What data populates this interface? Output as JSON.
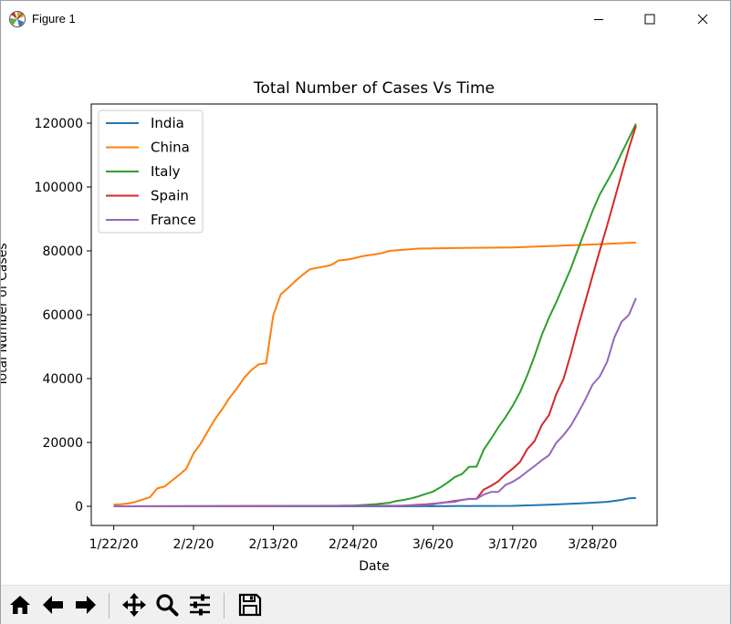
{
  "window": {
    "title": "Figure 1",
    "icons": [
      "matplotlib-logo-icon",
      "minimize-icon",
      "maximize-icon",
      "close-icon"
    ]
  },
  "toolbar": {
    "buttons": [
      "home-icon",
      "back-arrow-icon",
      "forward-arrow-icon",
      "pan-move-icon",
      "zoom-magnifier-icon",
      "configure-subplots-icon",
      "save-floppy-icon"
    ]
  },
  "chart_data": {
    "type": "line",
    "title": "Total Number of Cases Vs Time",
    "xlabel": "Date",
    "ylabel": "Total Number of Cases",
    "x_ticks": [
      {
        "day": 0,
        "label": "1/22/20"
      },
      {
        "day": 11,
        "label": "2/2/20"
      },
      {
        "day": 22,
        "label": "2/13/20"
      },
      {
        "day": 33,
        "label": "2/24/20"
      },
      {
        "day": 44,
        "label": "3/6/20"
      },
      {
        "day": 55,
        "label": "3/17/20"
      },
      {
        "day": 66,
        "label": "3/28/20"
      }
    ],
    "y_ticks": [
      0,
      20000,
      40000,
      60000,
      80000,
      100000,
      120000
    ],
    "ylim": [
      -6000,
      126000
    ],
    "grid": false,
    "legend_position": "upper-left",
    "series": [
      {
        "name": "India",
        "color": "#1f77b4",
        "points": [
          [
            0,
            0
          ],
          [
            40,
            6
          ],
          [
            44,
            30
          ],
          [
            50,
            100
          ],
          [
            55,
            140
          ],
          [
            60,
            500
          ],
          [
            65,
            1000
          ],
          [
            68,
            1400
          ],
          [
            70,
            2000
          ],
          [
            71,
            2500
          ],
          [
            72,
            2600
          ]
        ]
      },
      {
        "name": "China",
        "color": "#ff7f0e",
        "points": [
          [
            0,
            550
          ],
          [
            1,
            650
          ],
          [
            2,
            900
          ],
          [
            3,
            1400
          ],
          [
            4,
            2100
          ],
          [
            5,
            2900
          ],
          [
            6,
            5600
          ],
          [
            7,
            6200
          ],
          [
            8,
            8000
          ],
          [
            9,
            9800
          ],
          [
            10,
            11800
          ],
          [
            11,
            16600
          ],
          [
            12,
            19700
          ],
          [
            13,
            23700
          ],
          [
            14,
            27400
          ],
          [
            15,
            30600
          ],
          [
            16,
            34100
          ],
          [
            17,
            37000
          ],
          [
            18,
            40300
          ],
          [
            19,
            42700
          ],
          [
            20,
            44500
          ],
          [
            21,
            44800
          ],
          [
            22,
            59900
          ],
          [
            23,
            66300
          ],
          [
            24,
            68300
          ],
          [
            25,
            70500
          ],
          [
            26,
            72400
          ],
          [
            27,
            74200
          ],
          [
            28,
            74700
          ],
          [
            29,
            75100
          ],
          [
            30,
            75600
          ],
          [
            31,
            77000
          ],
          [
            32,
            77200
          ],
          [
            33,
            77600
          ],
          [
            34,
            78200
          ],
          [
            35,
            78600
          ],
          [
            36,
            78900
          ],
          [
            37,
            79300
          ],
          [
            38,
            80000
          ],
          [
            42,
            80700
          ],
          [
            47,
            80900
          ],
          [
            55,
            81100
          ],
          [
            60,
            81500
          ],
          [
            66,
            82000
          ],
          [
            72,
            82600
          ]
        ]
      },
      {
        "name": "Italy",
        "color": "#2ca02c",
        "points": [
          [
            0,
            0
          ],
          [
            30,
            100
          ],
          [
            33,
            230
          ],
          [
            36,
            650
          ],
          [
            38,
            1100
          ],
          [
            39,
            1700
          ],
          [
            40,
            2000
          ],
          [
            41,
            2500
          ],
          [
            42,
            3100
          ],
          [
            43,
            3900
          ],
          [
            44,
            4600
          ],
          [
            45,
            5900
          ],
          [
            46,
            7400
          ],
          [
            47,
            9100
          ],
          [
            48,
            10100
          ],
          [
            49,
            12400
          ],
          [
            50,
            12400
          ],
          [
            51,
            17700
          ],
          [
            52,
            21100
          ],
          [
            53,
            24700
          ],
          [
            54,
            27900
          ],
          [
            55,
            31500
          ],
          [
            56,
            35700
          ],
          [
            57,
            41000
          ],
          [
            58,
            47000
          ],
          [
            59,
            53600
          ],
          [
            60,
            59100
          ],
          [
            61,
            63900
          ],
          [
            62,
            69200
          ],
          [
            63,
            74400
          ],
          [
            64,
            80600
          ],
          [
            65,
            86500
          ],
          [
            66,
            92500
          ],
          [
            67,
            97700
          ],
          [
            68,
            101700
          ],
          [
            69,
            105800
          ],
          [
            70,
            110600
          ],
          [
            71,
            115200
          ],
          [
            72,
            119800
          ]
        ]
      },
      {
        "name": "Spain",
        "color": "#d62728",
        "points": [
          [
            0,
            0
          ],
          [
            40,
            200
          ],
          [
            43,
            600
          ],
          [
            45,
            1000
          ],
          [
            47,
            1700
          ],
          [
            49,
            2300
          ],
          [
            50,
            2300
          ],
          [
            51,
            5200
          ],
          [
            52,
            6400
          ],
          [
            53,
            7800
          ],
          [
            54,
            10000
          ],
          [
            55,
            11800
          ],
          [
            56,
            13900
          ],
          [
            57,
            17900
          ],
          [
            58,
            20400
          ],
          [
            59,
            25400
          ],
          [
            60,
            28600
          ],
          [
            61,
            35100
          ],
          [
            62,
            39900
          ],
          [
            63,
            47600
          ],
          [
            64,
            56200
          ],
          [
            65,
            64100
          ],
          [
            66,
            72200
          ],
          [
            67,
            80100
          ],
          [
            68,
            87900
          ],
          [
            69,
            95900
          ],
          [
            70,
            104100
          ],
          [
            71,
            112000
          ],
          [
            72,
            119200
          ]
        ]
      },
      {
        "name": "France",
        "color": "#9467bd",
        "points": [
          [
            0,
            0
          ],
          [
            38,
            100
          ],
          [
            42,
            300
          ],
          [
            44,
            600
          ],
          [
            45,
            1100
          ],
          [
            47,
            1400
          ],
          [
            48,
            2000
          ],
          [
            49,
            2300
          ],
          [
            50,
            2300
          ],
          [
            51,
            3700
          ],
          [
            52,
            4500
          ],
          [
            53,
            4500
          ],
          [
            54,
            6700
          ],
          [
            55,
            7700
          ],
          [
            56,
            9100
          ],
          [
            57,
            10900
          ],
          [
            58,
            12600
          ],
          [
            59,
            14400
          ],
          [
            60,
            16000
          ],
          [
            61,
            19900
          ],
          [
            62,
            22300
          ],
          [
            63,
            25200
          ],
          [
            64,
            29200
          ],
          [
            65,
            33400
          ],
          [
            66,
            38100
          ],
          [
            67,
            40700
          ],
          [
            68,
            45200
          ],
          [
            69,
            52800
          ],
          [
            70,
            57800
          ],
          [
            71,
            59900
          ],
          [
            72,
            65200
          ]
        ]
      }
    ]
  }
}
